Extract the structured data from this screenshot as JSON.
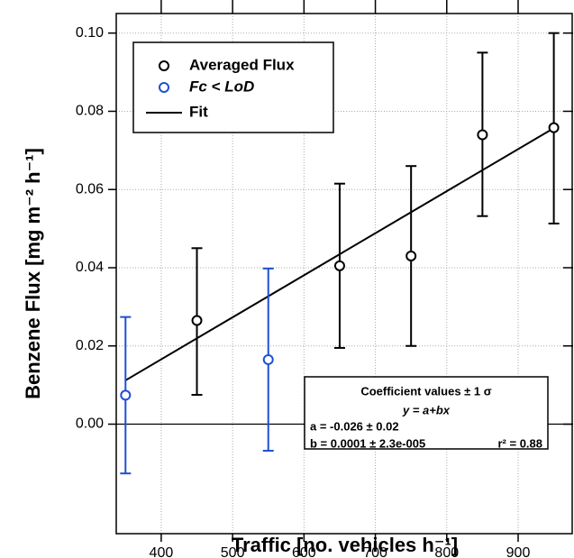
{
  "chart_data": {
    "type": "scatter",
    "xlabel": "Traffic [no. vehicles h⁻¹]",
    "ylabel": "Benzene Flux [mg m⁻² h⁻¹]",
    "xlim": [
      337,
      977
    ],
    "xticks": [
      400,
      500,
      600,
      700,
      800,
      900
    ],
    "ylim": [
      -0.028,
      0.105
    ],
    "yticks": [
      {
        "value": 0,
        "label": "0.00"
      },
      {
        "value": 0.02,
        "label": "0.02"
      },
      {
        "value": 0.04,
        "label": "0.04"
      },
      {
        "value": 0.06,
        "label": "0.06"
      },
      {
        "value": 0.08,
        "label": "0.08"
      },
      {
        "value": 0.1,
        "label": "0.10"
      }
    ],
    "grid": true,
    "series": [
      {
        "name": "Averaged Flux",
        "color": "#000000",
        "x": [
          450,
          650,
          750,
          850,
          950
        ],
        "values": [
          0.0265,
          0.0405,
          0.043,
          0.074,
          0.0758
        ],
        "upper": [
          0.045,
          0.0615,
          0.066,
          0.095,
          0.1
        ],
        "lower": [
          0.0075,
          0.0195,
          0.02,
          0.0532,
          0.0513
        ]
      },
      {
        "name": "Fc < LoD",
        "color": "#1f4fd1",
        "x": [
          350,
          550
        ],
        "values": [
          0.0074,
          0.0165
        ],
        "upper": [
          0.0274,
          0.0398
        ],
        "lower": [
          -0.0126,
          -0.0068
        ]
      }
    ],
    "fit": {
      "name": "Fit",
      "color": "#000000",
      "x": [
        350,
        950
      ],
      "values": [
        0.0112,
        0.0757
      ]
    },
    "annotation": [
      "Coefficient values ± 1 σ",
      "y = a+bx",
      "a = -0.026 ± 0.02",
      "b = 0.0001 ± 2.3e-005",
      "r² = 0.88"
    ]
  }
}
